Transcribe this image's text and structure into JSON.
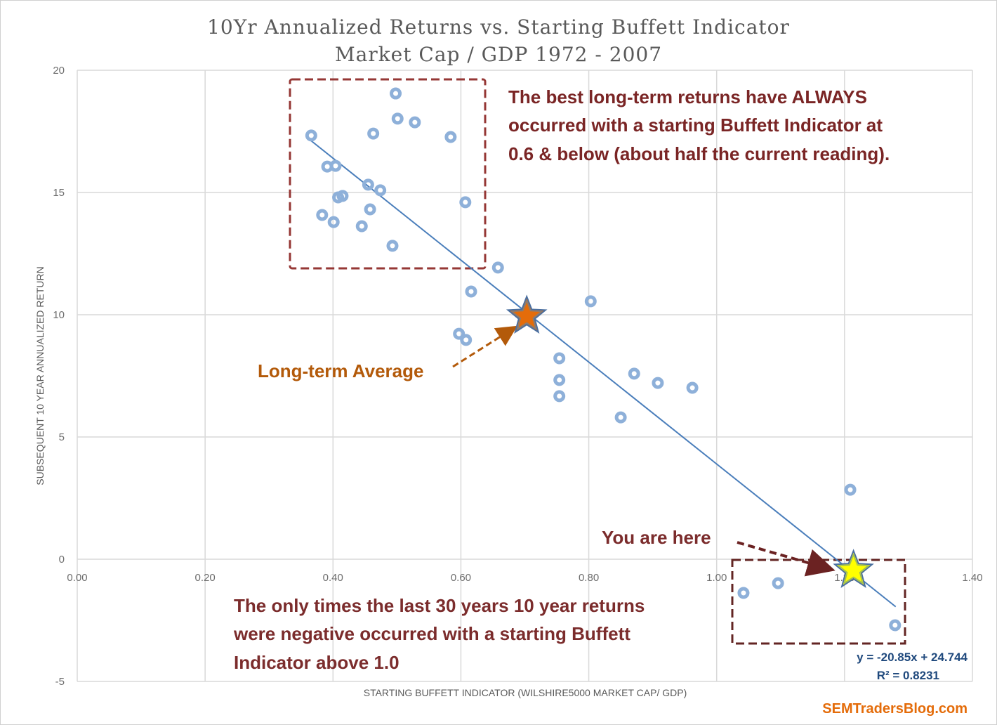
{
  "chart_data": {
    "type": "scatter",
    "title": "10Yr Annualized Returns vs. Starting Buffett Indicator",
    "subtitle": "Market Cap / GDP 1972 - 2007",
    "xlabel": "STARTING BUFFETT INDICATOR (WILSHIRE5000 MARKET CAP/ GDP)",
    "ylabel": "SUBSEQUENT 10 YEAR ANNUALIZED RETURN",
    "xlim": [
      0,
      1.4
    ],
    "ylim": [
      -5,
      20
    ],
    "x_ticks": [
      "0.00",
      "0.20",
      "0.40",
      "0.60",
      "0.80",
      "1.00",
      "1.20",
      "1.40"
    ],
    "y_ticks": [
      "-5",
      "0",
      "5",
      "10",
      "15",
      "20"
    ],
    "grid": true,
    "marker_color": "#8eb0d9",
    "trend_color": "#4a7ebb",
    "points": [
      [
        0.366,
        17.33
      ],
      [
        0.391,
        16.06
      ],
      [
        0.404,
        16.09
      ],
      [
        0.383,
        14.08
      ],
      [
        0.401,
        13.79
      ],
      [
        0.408,
        14.8
      ],
      [
        0.415,
        14.86
      ],
      [
        0.445,
        13.62
      ],
      [
        0.455,
        15.32
      ],
      [
        0.458,
        14.31
      ],
      [
        0.474,
        15.09
      ],
      [
        0.463,
        17.41
      ],
      [
        0.498,
        19.05
      ],
      [
        0.501,
        18.02
      ],
      [
        0.528,
        17.87
      ],
      [
        0.493,
        12.82
      ],
      [
        0.584,
        17.27
      ],
      [
        0.607,
        14.6
      ],
      [
        0.658,
        11.93
      ],
      [
        0.616,
        10.95
      ],
      [
        0.597,
        9.22
      ],
      [
        0.608,
        8.97
      ],
      [
        0.803,
        10.55
      ],
      [
        0.754,
        8.22
      ],
      [
        0.754,
        7.33
      ],
      [
        0.754,
        6.67
      ],
      [
        0.871,
        7.59
      ],
      [
        0.908,
        7.21
      ],
      [
        0.962,
        7.01
      ],
      [
        0.85,
        5.8
      ],
      [
        1.209,
        2.84
      ],
      [
        1.042,
        -1.38
      ],
      [
        1.096,
        -0.98
      ],
      [
        1.279,
        -2.7
      ]
    ],
    "trendline": {
      "slope": -20.85,
      "intercept": 24.744,
      "x_range": [
        0.366,
        1.28
      ],
      "equation": "y = -20.85x + 24.744",
      "r2": "R² = 0.8231"
    },
    "markers": [
      {
        "name": "long-term-average",
        "x": 0.703,
        "y": 9.94,
        "color": "#e46c0a"
      },
      {
        "name": "current",
        "x": 1.214,
        "y": -0.46,
        "color": "#ffff00"
      }
    ],
    "annotations": {
      "best": [
        "The best long-term returns have ALWAYS",
        "occurred with a starting Buffett Indicator at",
        "0.6 & below (about half the current reading)."
      ],
      "average": "Long-term Average",
      "here": "You are here",
      "negative": [
        "The only times the last 30 years 10 year returns",
        "were negative occurred with a starting Buffett",
        "Indicator above 1.0"
      ]
    }
  },
  "brand": "SEMTradersBlog.com"
}
